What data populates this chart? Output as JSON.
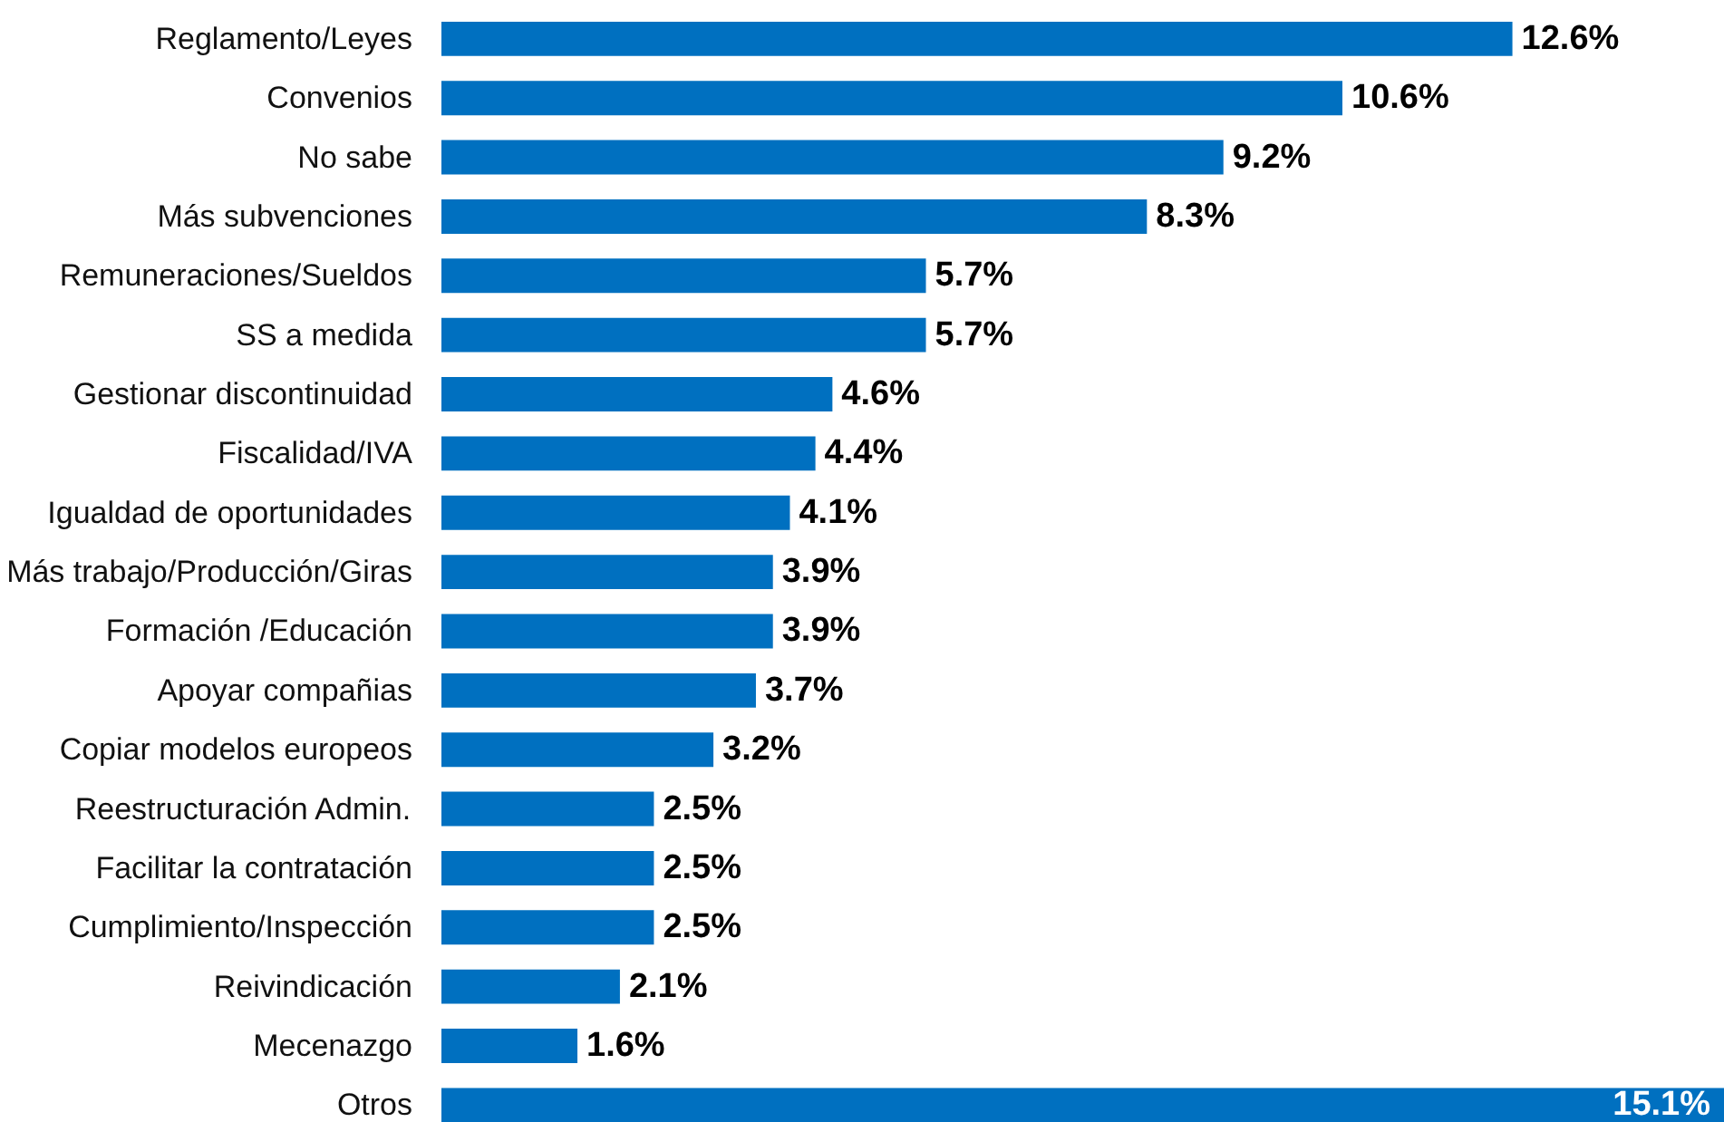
{
  "chart_data": {
    "type": "bar",
    "orientation": "horizontal",
    "color": "#0070c0",
    "data_labels": true,
    "grid": false,
    "categories": [
      "Reglamento/Leyes",
      "Convenios",
      "No sabe",
      "Más subvenciones",
      "Remuneraciones/Sueldos",
      "SS a medida",
      "Gestionar discontinuidad",
      "Fiscalidad/IVA",
      "Igualdad de oportunidades",
      "Más trabajo/Producción/Giras",
      "Formación /Educación",
      "Apoyar compañias",
      "Copiar modelos europeos",
      "Reestructuración Admin.",
      "Facilitar la contratación",
      "Cumplimiento/Inspección",
      "Reivindicación",
      "Mecenazgo",
      "Otros"
    ],
    "values": [
      12.6,
      10.6,
      9.2,
      8.3,
      5.7,
      5.7,
      4.6,
      4.4,
      4.1,
      3.9,
      3.9,
      3.7,
      3.2,
      2.5,
      2.5,
      2.5,
      2.1,
      1.6,
      15.1
    ],
    "value_labels": [
      "12.6%",
      "10.6%",
      "9.2%",
      "8.3%",
      "5.7%",
      "5.7%",
      "4.6%",
      "4.4%",
      "4.1%",
      "3.9%",
      "3.9%",
      "3.7%",
      "3.2%",
      "2.5%",
      "2.5%",
      "2.5%",
      "2.1%",
      "1.6%",
      "15.1%"
    ]
  }
}
